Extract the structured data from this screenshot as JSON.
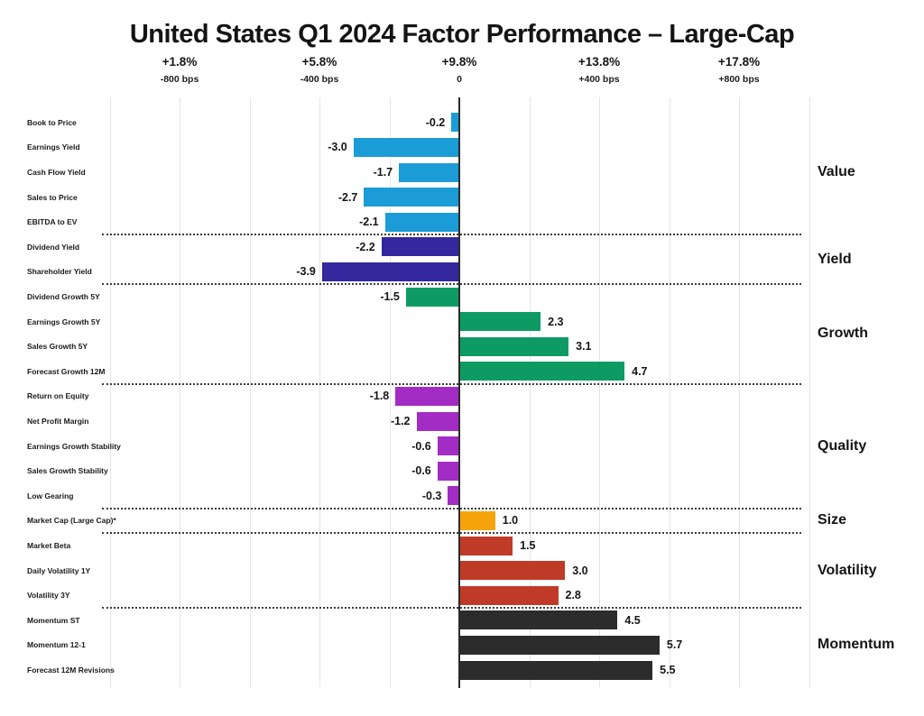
{
  "chart_data": {
    "type": "bar",
    "orientation": "horizontal",
    "title": "United States Q1 2024 Factor Performance – Large-Cap",
    "axis": {
      "unit": "bps",
      "range_bps": [
        -1000,
        1000
      ],
      "gridline_interval_bps": 200,
      "zero_axis_color": "#2b2b2b",
      "gridline_color": "#e4e4e4",
      "ticks": [
        {
          "pct": "+1.8%",
          "sub": "-800 bps",
          "bps": -800
        },
        {
          "pct": "+5.8%",
          "sub": "-400 bps",
          "bps": -400
        },
        {
          "pct": "+9.8%",
          "sub": "0",
          "bps": 0
        },
        {
          "pct": "+13.8%",
          "sub": "+400 bps",
          "bps": 400
        },
        {
          "pct": "+17.8%",
          "sub": "+800 bps",
          "bps": 800
        }
      ]
    },
    "sections": [
      {
        "name": "Value",
        "color": "#1b9cd6",
        "rows": [
          {
            "label": "Book to Price",
            "value": -0.2,
            "display": "-0.2"
          },
          {
            "label": "Earnings Yield",
            "value": -3.0,
            "display": "-3.0"
          },
          {
            "label": "Cash Flow Yield",
            "value": -1.7,
            "display": "-1.7"
          },
          {
            "label": "Sales to Price",
            "value": -2.7,
            "display": "-2.7"
          },
          {
            "label": "EBITDA to EV",
            "value": -2.1,
            "display": "-2.1"
          }
        ]
      },
      {
        "name": "Yield",
        "color": "#33289e",
        "rows": [
          {
            "label": "Dividend Yield",
            "value": -2.2,
            "display": "-2.2"
          },
          {
            "label": "Shareholder Yield",
            "value": -3.9,
            "display": "-3.9"
          }
        ]
      },
      {
        "name": "Growth",
        "color": "#0d9b63",
        "rows": [
          {
            "label": "Dividend Growth 5Y",
            "value": -1.5,
            "display": "-1.5"
          },
          {
            "label": "Earnings Growth 5Y",
            "value": 2.3,
            "display": "2.3"
          },
          {
            "label": "Sales Growth 5Y",
            "value": 3.1,
            "display": "3.1"
          },
          {
            "label": "Forecast Growth 12M",
            "value": 4.7,
            "display": "4.7"
          }
        ]
      },
      {
        "name": "Quality",
        "color": "#a32cc4",
        "rows": [
          {
            "label": "Return on Equity",
            "value": -1.8,
            "display": "-1.8"
          },
          {
            "label": "Net Profit Margin",
            "value": -1.2,
            "display": "-1.2"
          },
          {
            "label": "Earnings Growth Stability",
            "value": -0.6,
            "display": "-0.6"
          },
          {
            "label": "Sales Growth Stability",
            "value": -0.6,
            "display": "-0.6"
          },
          {
            "label": "Low Gearing",
            "value": -0.3,
            "display": "-0.3"
          }
        ]
      },
      {
        "name": "Size",
        "color": "#f7a30b",
        "rows": [
          {
            "label": "Market Cap (Large Cap)*",
            "value": 1.0,
            "display": "1.0"
          }
        ]
      },
      {
        "name": "Volatility",
        "color": "#c03a28",
        "rows": [
          {
            "label": "Market Beta",
            "value": 1.5,
            "display": "1.5"
          },
          {
            "label": "Daily Volatility 1Y",
            "value": 3.0,
            "display": "3.0"
          },
          {
            "label": "Volatility 3Y",
            "value": 2.8,
            "display": "2.8"
          }
        ]
      },
      {
        "name": "Momentum",
        "color": "#2d2c2c",
        "rows": [
          {
            "label": "Momentum ST",
            "value": 4.5,
            "display": "4.5"
          },
          {
            "label": "Momentum 12-1",
            "value": 5.7,
            "display": "5.7"
          },
          {
            "label": "Forecast 12M Revisions",
            "value": 5.5,
            "display": "5.5"
          }
        ]
      }
    ]
  }
}
